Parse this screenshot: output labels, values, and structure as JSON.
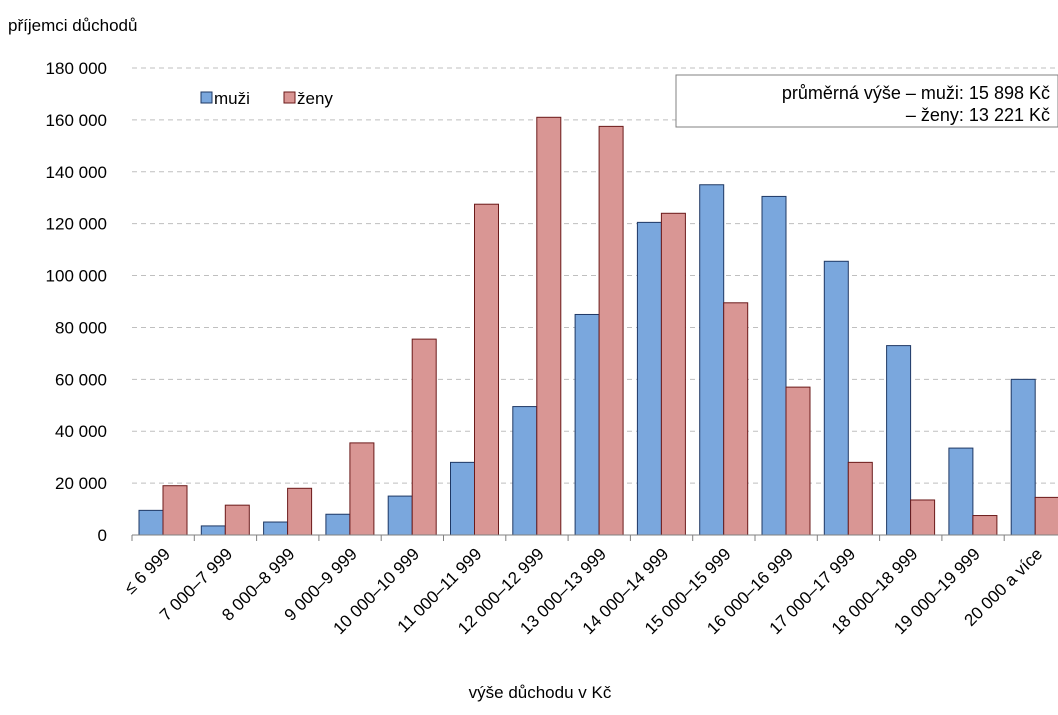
{
  "chart_data": {
    "type": "bar",
    "ylabel": "příjemci důchodů",
    "xlabel": "výše důchodu v Kč",
    "ylim": [
      0,
      180000
    ],
    "yticks": [
      0,
      20000,
      40000,
      60000,
      80000,
      100000,
      120000,
      140000,
      160000,
      180000
    ],
    "ytick_labels": [
      "0",
      "20 000",
      "40 000",
      "60 000",
      "80 000",
      "100 000",
      "120 000",
      "140 000",
      "160 000",
      "180 000"
    ],
    "grid": true,
    "legend_position": "top-left",
    "categories": [
      "≤ 6 999",
      "7 000–7 999",
      "8 000–8 999",
      "9 000–9 999",
      "10 000–10 999",
      "11 000–11 999",
      "12 000–12 999",
      "13 000–13 999",
      "14 000–14 999",
      "15 000–15 999",
      "16 000–16 999",
      "17 000–17 999",
      "18 000–18 999",
      "19 000–19 999",
      "20 000 a více"
    ],
    "series": [
      {
        "name": "muži",
        "color": "#7aa7dd",
        "edge": "#1f3864",
        "values": [
          9500,
          3500,
          5000,
          8000,
          15000,
          28000,
          49500,
          85000,
          120500,
          135000,
          130500,
          105500,
          73000,
          33500,
          60000
        ]
      },
      {
        "name": "ženy",
        "color": "#d99694",
        "edge": "#6b1a1a",
        "values": [
          19000,
          11500,
          18000,
          35500,
          75500,
          127500,
          161000,
          157500,
          124000,
          89500,
          57000,
          28000,
          13500,
          7500,
          14500
        ]
      }
    ],
    "annotation": {
      "line1": "průměrná výše – muži: 15 898 Kč",
      "line2": "– ženy: 13 221 Kč"
    }
  }
}
